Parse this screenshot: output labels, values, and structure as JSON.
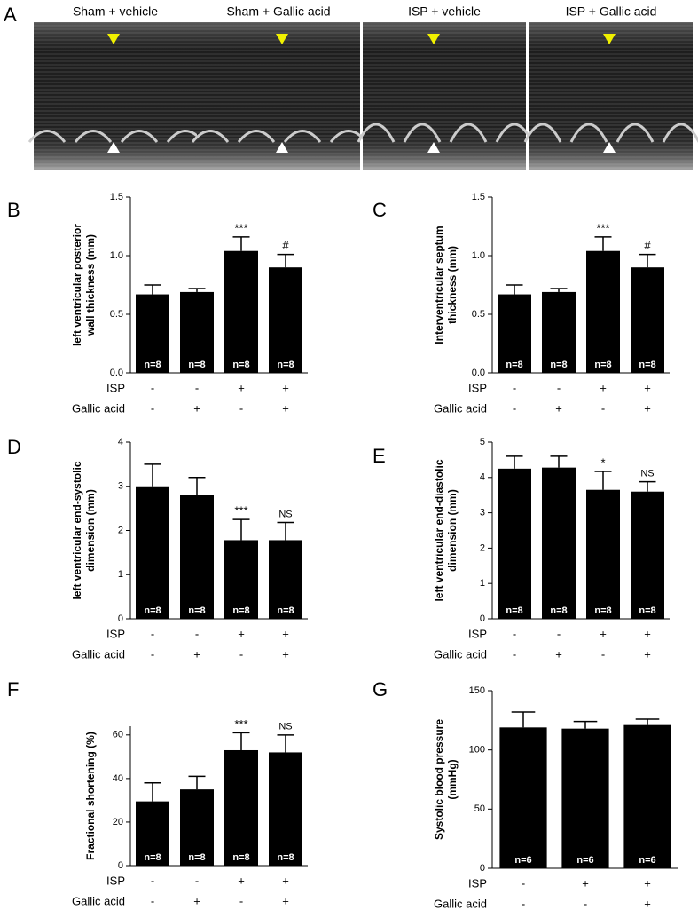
{
  "panel_a": {
    "label": "A",
    "images": [
      "Sham + vehicle",
      "Sham + Gallic acid",
      "ISP + vehicle",
      "ISP + Gallic acid"
    ]
  },
  "chart_data": [
    {
      "panel": "B",
      "type": "bar",
      "color": "#000000",
      "ylabel": [
        "left ventricular posterior",
        "wall thickness (mm)"
      ],
      "values": [
        0.67,
        0.69,
        1.04,
        0.9
      ],
      "errors": [
        0.08,
        0.03,
        0.12,
        0.11
      ],
      "n_labels": [
        "n=8",
        "n=8",
        "n=8",
        "n=8"
      ],
      "annotations": [
        null,
        null,
        "***",
        "#"
      ],
      "ylim": [
        0,
        1.5
      ],
      "yticks": [
        {
          "value": 0,
          "label": "0.0"
        },
        {
          "value": 0.5,
          "label": "0.5"
        },
        {
          "value": 1,
          "label": "1.0"
        },
        {
          "value": 1.5,
          "label": "1.5"
        }
      ],
      "conditions": [
        {
          "name": "ISP",
          "values": [
            "-",
            "-",
            "+",
            "+"
          ]
        },
        {
          "name": "Gallic acid",
          "values": [
            "-",
            "+",
            "-",
            "+"
          ]
        }
      ]
    },
    {
      "panel": "C",
      "type": "bar",
      "color": "#000000",
      "ylabel": [
        "Interventricular septum",
        "thickness (mm)"
      ],
      "values": [
        0.67,
        0.69,
        1.04,
        0.9
      ],
      "errors": [
        0.08,
        0.03,
        0.12,
        0.11
      ],
      "n_labels": [
        "n=8",
        "n=8",
        "n=8",
        "n=8"
      ],
      "annotations": [
        null,
        null,
        "***",
        "#"
      ],
      "ylim": [
        0,
        1.5
      ],
      "yticks": [
        {
          "value": 0,
          "label": "0.0"
        },
        {
          "value": 0.5,
          "label": "0.5"
        },
        {
          "value": 1,
          "label": "1.0"
        },
        {
          "value": 1.5,
          "label": "1.5"
        }
      ],
      "conditions": [
        {
          "name": "ISP",
          "values": [
            "-",
            "-",
            "+",
            "+"
          ]
        },
        {
          "name": "Gallic acid",
          "values": [
            "-",
            "+",
            "-",
            "+"
          ]
        }
      ]
    },
    {
      "panel": "D",
      "type": "bar",
      "color": "#000000",
      "ylabel": [
        "left ventricular end-systolic",
        "dimension (mm)"
      ],
      "values": [
        3.0,
        2.8,
        1.78,
        1.78
      ],
      "errors": [
        0.5,
        0.4,
        0.47,
        0.4
      ],
      "n_labels": [
        "n=8",
        "n=8",
        "n=8",
        "n=8"
      ],
      "annotations": [
        null,
        null,
        "***",
        "NS"
      ],
      "ylim": [
        0,
        4
      ],
      "yticks": [
        0,
        1,
        2,
        3,
        4
      ],
      "conditions": [
        {
          "name": "ISP",
          "values": [
            "-",
            "-",
            "+",
            "+"
          ]
        },
        {
          "name": "Gallic acid",
          "values": [
            "-",
            "+",
            "-",
            "+"
          ]
        }
      ]
    },
    {
      "panel": "E",
      "type": "bar",
      "color": "#000000",
      "ylabel": [
        "left ventricular end-diastolic",
        "dimension (mm)"
      ],
      "values": [
        4.25,
        4.28,
        3.65,
        3.6
      ],
      "errors": [
        0.35,
        0.32,
        0.52,
        0.28
      ],
      "n_labels": [
        "n=8",
        "n=8",
        "n=8",
        "n=8"
      ],
      "annotations": [
        null,
        null,
        "*",
        "NS"
      ],
      "ylim": [
        0,
        5
      ],
      "yticks": [
        0,
        1,
        2,
        3,
        4,
        5
      ],
      "conditions": [
        {
          "name": "ISP",
          "values": [
            "-",
            "-",
            "+",
            "+"
          ]
        },
        {
          "name": "Gallic acid",
          "values": [
            "-",
            "+",
            "-",
            "+"
          ]
        }
      ]
    },
    {
      "panel": "F",
      "type": "bar",
      "color": "#000000",
      "ylabel": [
        "Fractional shortening (%)"
      ],
      "values": [
        29.5,
        35,
        53,
        52
      ],
      "errors": [
        8.5,
        6,
        8,
        8
      ],
      "n_labels": [
        "n=8",
        "n=8",
        "n=8",
        "n=8"
      ],
      "annotations": [
        null,
        null,
        "***",
        "NS"
      ],
      "ylim": [
        0,
        64
      ],
      "yticks": [
        0,
        20,
        40,
        60
      ],
      "conditions": [
        {
          "name": "ISP",
          "values": [
            "-",
            "-",
            "+",
            "+"
          ]
        },
        {
          "name": "Gallic acid",
          "values": [
            "-",
            "+",
            "-",
            "+"
          ]
        }
      ]
    },
    {
      "panel": "G",
      "type": "bar",
      "color": "#000000",
      "ylabel": [
        "Systolic blood pressure",
        "(mmHg)"
      ],
      "values": [
        119,
        118,
        121
      ],
      "errors": [
        13,
        6,
        5
      ],
      "n_labels": [
        "n=6",
        "n=6",
        "n=6"
      ],
      "annotations": [
        null,
        null,
        null
      ],
      "ylim": [
        0,
        150
      ],
      "yticks": [
        0,
        50,
        100,
        150
      ],
      "conditions": [
        {
          "name": "ISP",
          "values": [
            "-",
            "+",
            "+"
          ]
        },
        {
          "name": "Gallic acid",
          "values": [
            "-",
            "-",
            "+"
          ]
        }
      ]
    }
  ]
}
